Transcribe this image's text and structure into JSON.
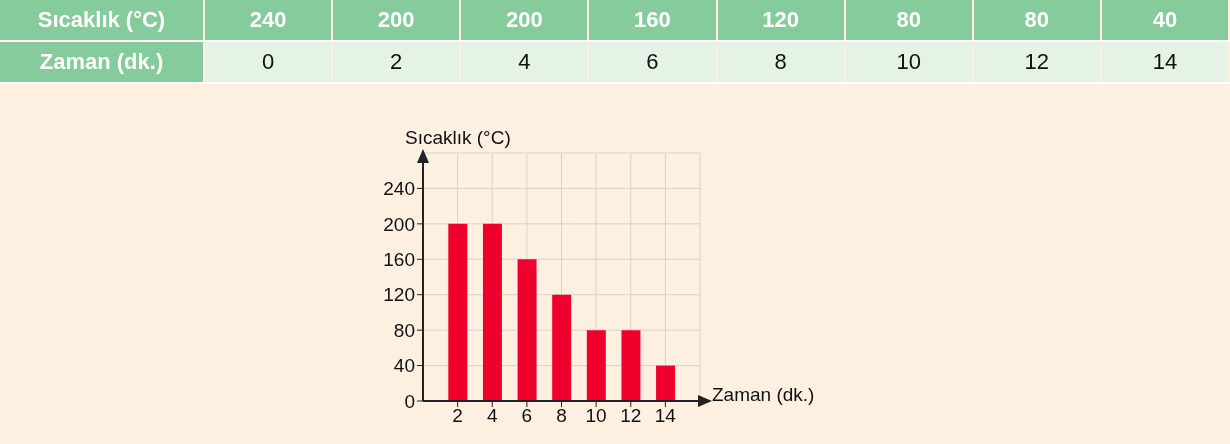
{
  "chart_data": {
    "type": "bar",
    "xlabel": "Zaman (dk.)",
    "ylabel": "Sıcaklık (°C)",
    "x": [
      2,
      4,
      6,
      8,
      10,
      12,
      14
    ],
    "values": [
      200,
      200,
      160,
      120,
      80,
      80,
      40
    ],
    "color": "#f0002d",
    "xlim": [
      0,
      16
    ],
    "xticks": [
      2,
      4,
      6,
      8,
      10,
      12,
      14
    ],
    "ylim": [
      0,
      280
    ],
    "yticks": [
      0,
      40,
      80,
      120,
      160,
      200,
      240
    ],
    "grid": true,
    "annotations": [
      "Sıcaklık (°C)",
      "240",
      "200",
      "200",
      "160",
      "120",
      "80",
      "80",
      "40",
      "Zaman (dk.)",
      "0",
      "2",
      "4",
      "6",
      "8",
      "10",
      "12",
      "14"
    ]
  }
}
